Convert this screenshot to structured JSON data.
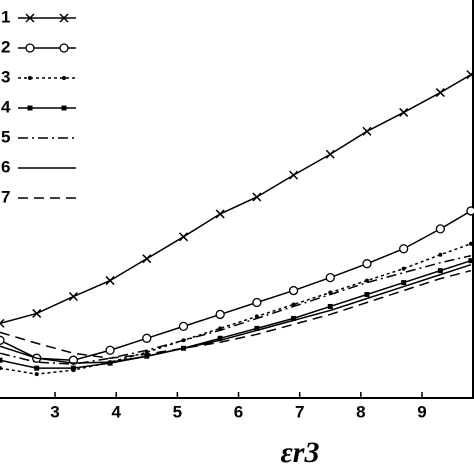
{
  "chart_data": {
    "type": "line",
    "xlabel": "εr3",
    "x": [
      2.1,
      2.7,
      3.3,
      3.9,
      4.5,
      5.1,
      5.7,
      6.3,
      6.9,
      7.5,
      8.1,
      8.7,
      9.3,
      9.8
    ],
    "xlim": [
      2.1,
      9.85
    ],
    "xticks": [
      3,
      4,
      5,
      6,
      7,
      8,
      9
    ],
    "ylim": [
      0,
      400
    ],
    "legend": "upper-left",
    "series": [
      {
        "name": "1",
        "color": "#000",
        "marker": "x",
        "dash": "",
        "values": [
          75,
          85,
          102,
          118,
          140,
          162,
          185,
          202,
          224,
          245,
          268,
          287,
          307,
          325
        ]
      },
      {
        "name": "2",
        "color": "#000",
        "marker": "circle",
        "dash": "",
        "values": [
          58,
          40,
          38,
          48,
          60,
          72,
          84,
          96,
          108,
          121,
          135,
          150,
          170,
          188
        ]
      },
      {
        "name": "3",
        "color": "#000",
        "marker": "dot",
        "dash": "3 3",
        "values": [
          30,
          24,
          28,
          36,
          46,
          58,
          70,
          82,
          94,
          106,
          118,
          130,
          144,
          155
        ]
      },
      {
        "name": "4",
        "color": "#000",
        "marker": "square",
        "dash": "",
        "values": [
          38,
          30,
          30,
          35,
          42,
          50,
          60,
          70,
          80,
          92,
          104,
          116,
          128,
          138
        ]
      },
      {
        "name": "5",
        "color": "#000",
        "marker": "",
        "dash": "10 4 2 4",
        "values": [
          45,
          36,
          34,
          40,
          48,
          58,
          68,
          80,
          92,
          104,
          116,
          126,
          136,
          143
        ]
      },
      {
        "name": "6",
        "color": "#000",
        "marker": "",
        "dash": "",
        "values": [
          52,
          40,
          35,
          36,
          42,
          50,
          58,
          68,
          78,
          88,
          100,
          112,
          124,
          134
        ]
      },
      {
        "name": "7",
        "color": "#000",
        "marker": "",
        "dash": "10 6",
        "values": [
          66,
          55,
          45,
          40,
          44,
          50,
          56,
          64,
          74,
          84,
          96,
          108,
          120,
          128
        ]
      }
    ]
  }
}
